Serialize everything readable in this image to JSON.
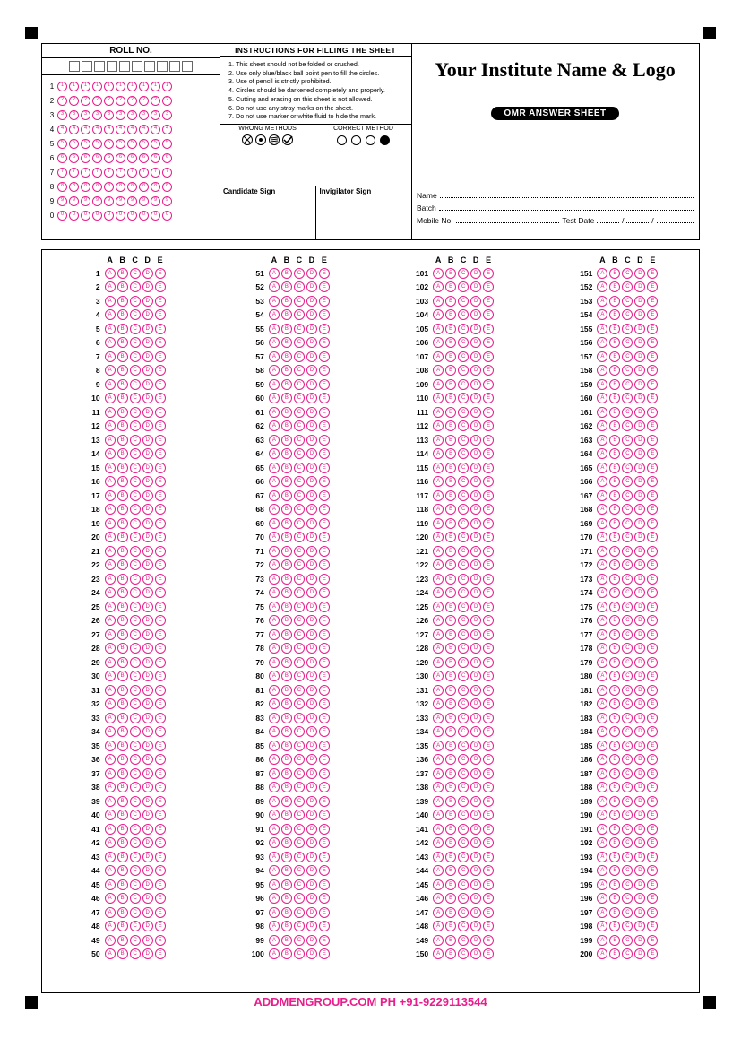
{
  "roll_label": "ROLL NO.",
  "roll_digits": 10,
  "roll_rows": [
    "1",
    "2",
    "3",
    "4",
    "5",
    "6",
    "7",
    "8",
    "9",
    "0"
  ],
  "instructions_title": "INSTRUCTIONS FOR FILLING THE SHEET",
  "instructions": [
    "This sheet should not be folded or crushed.",
    "Use only blue/black ball point pen to fill the circles.",
    "Use of pencil is strictly prohibited.",
    "Circles should be darkened completely and properly.",
    "Cutting and erasing on this sheet is not allowed.",
    "Do not use any stray marks on the sheet.",
    "Do not use marker or white fluid to hide the mark."
  ],
  "wrong_label": "WRONG METHODS",
  "correct_label": "CORRECT METHOD",
  "candidate_sign": "Candidate Sign",
  "invigilator_sign": "Invigilator Sign",
  "institute_title": "Your Institute Name & Logo",
  "omr_label": "OMR ANSWER SHEET",
  "info_name": "Name",
  "info_batch": "Batch",
  "info_mobile": "Mobile No.",
  "info_testdate": "Test Date",
  "options": [
    "A",
    "B",
    "C",
    "D",
    "E"
  ],
  "total_questions": 200,
  "questions_per_col": 50,
  "bubble_color": "#e91e8c",
  "footer": "ADDMENGROUP.COM    PH +91-9229113544"
}
